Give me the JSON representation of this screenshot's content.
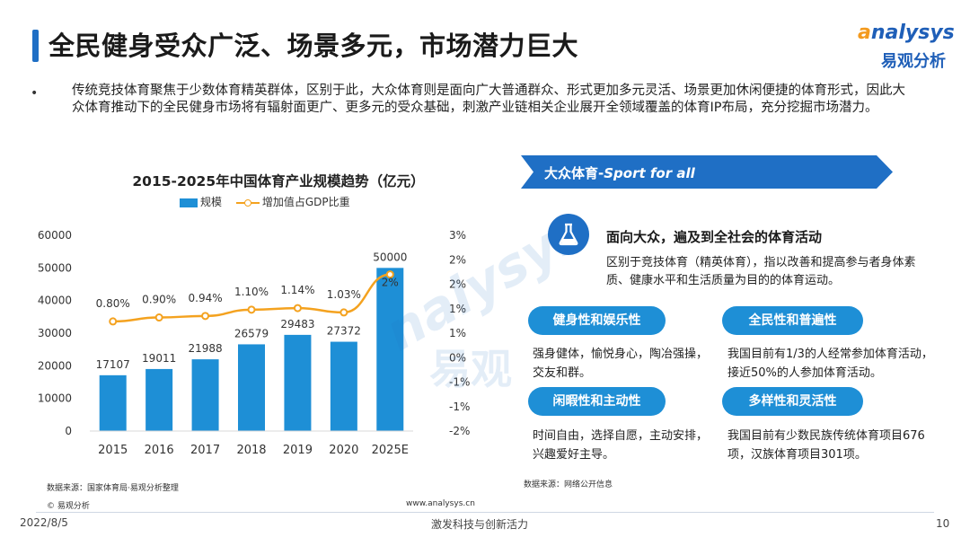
{
  "header": {
    "title": "全民健身受众广泛、场景多元，市场潜力巨大",
    "logo_en_first": "a",
    "logo_en_rest": "nalysys",
    "logo_cn": "易观分析"
  },
  "intro": {
    "bullet": "•",
    "text": "传统竞技体育聚焦于少数体育精英群体，区别于此，大众体育则是面向广大普通群众、形式更加多元灵活、场景更加休闲便捷的体育形式，因此大众体育推动下的全民健身市场将有辐射面更广、更多元的受众基础，刺激产业链相关企业展开全领域覆盖的体育IP布局，充分挖掘市场潜力。"
  },
  "chart_meta": {
    "legend_bar": "规模",
    "legend_line": "增加值占GDP比重",
    "source": "数据来源：国家体育局·易观分析整理",
    "copyright": "© 易观分析",
    "site": "www.analysys.cn"
  },
  "chart_data": {
    "type": "bar",
    "title": "2015-2025年中国体育产业规模趋势（亿元）",
    "categories": [
      "2015",
      "2016",
      "2017",
      "2018",
      "2019",
      "2020",
      "2025E"
    ],
    "series": [
      {
        "name": "规模",
        "type": "bar",
        "axis": "left",
        "values": [
          17107,
          19011,
          21988,
          26579,
          29483,
          27372,
          50000
        ],
        "labels": [
          "17107",
          "19011",
          "21988",
          "26579",
          "29483",
          "27372",
          "50000"
        ],
        "color": "#1e8fd6"
      },
      {
        "name": "增加值占GDP比重",
        "type": "line",
        "axis": "right",
        "values": [
          0.8,
          0.9,
          0.94,
          1.1,
          1.14,
          1.03,
          2
        ],
        "labels": [
          "0.80%",
          "0.90%",
          "0.94%",
          "1.10%",
          "1.14%",
          "1.03%",
          "2%"
        ],
        "color": "#f4a21f"
      }
    ],
    "ylim_left": [
      0,
      60000
    ],
    "yticks_left": [
      "0",
      "10000",
      "20000",
      "30000",
      "40000",
      "50000",
      "60000"
    ],
    "ylim_right": [
      -2,
      3
    ],
    "yticks_right": [
      "-2%",
      "-1%",
      "-1%",
      "0%",
      "1%",
      "1%",
      "2%",
      "2%",
      "3%"
    ],
    "grid": false,
    "legend_position": "top"
  },
  "panel": {
    "banner_cn": "大众体育-",
    "banner_en": "Sport for all",
    "headline": "面向大众，遍及到全社会的体育活动",
    "headline_desc": "区别于竞技体育（精英体育），指以改善和提高参与者身体素质、健康水平和生活质量为目的的体育运动。",
    "features": [
      {
        "label": "健身性和娱乐性",
        "desc": "强身健体，愉悦身心，陶冶强操，交友和群。"
      },
      {
        "label": "全民性和普遍性",
        "desc": "我国目前有1/3的人经常参加体育活动，接近50%的人参加体育活动。"
      },
      {
        "label": "闲暇性和主动性",
        "desc": "时间自由，选择自愿，主动安排，兴趣爱好主导。"
      },
      {
        "label": "多样性和灵活性",
        "desc": "我国目前有少数民族传统体育项目676项，汉族体育项目301项。"
      }
    ],
    "source": "数据来源：网络公开信息"
  },
  "footer": {
    "date": "2022/8/5",
    "slogan": "激发科技与创新活力",
    "page": "10"
  },
  "colors": {
    "primary": "#1f6fc5",
    "bar": "#1e8fd6",
    "line": "#f4a21f",
    "banner": "#1f6fc5"
  },
  "icons": {
    "headline_icon": "flask-icon"
  }
}
